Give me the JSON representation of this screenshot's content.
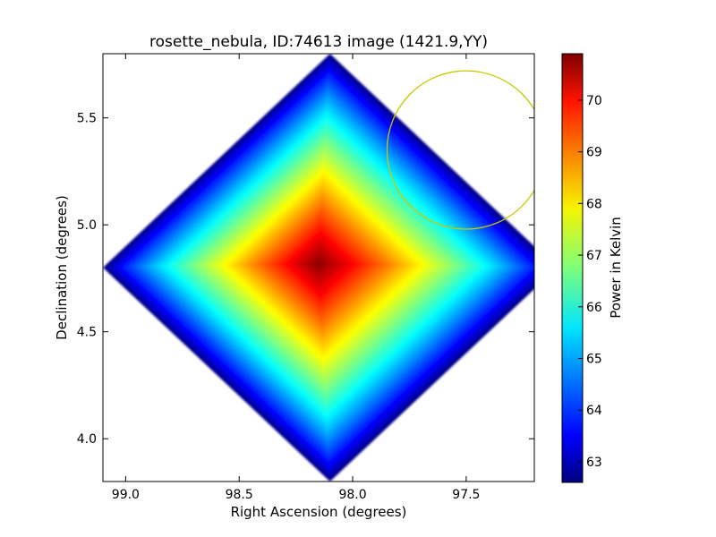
{
  "chart_data": {
    "type": "heatmap",
    "title": "rosette_nebula, ID:74613 image (1421.9,YY)",
    "xlabel": "Right Ascension (degrees)",
    "ylabel": "Declination (degrees)",
    "xlim": [
      99.1,
      97.2
    ],
    "ylim": [
      3.8,
      5.8
    ],
    "x_ticks": [
      99.0,
      98.5,
      98.0,
      97.5
    ],
    "x_tick_labels": [
      "99.0",
      "98.5",
      "98.0",
      "97.5"
    ],
    "y_ticks": [
      4.0,
      4.5,
      5.0,
      5.5
    ],
    "y_tick_labels": [
      "4.0",
      "4.5",
      "5.0",
      "5.5"
    ],
    "colormap": "jet",
    "colorbar": {
      "label": "Power in Kelvin",
      "range": [
        62.6,
        70.9
      ],
      "ticks": [
        63,
        64,
        65,
        66,
        67,
        68,
        69,
        70
      ],
      "tick_labels": [
        "63",
        "64",
        "65",
        "66",
        "67",
        "68",
        "69",
        "70"
      ]
    },
    "map": {
      "shape": "diamond",
      "center": [
        98.1,
        4.8
      ],
      "half_extent_ra": 1.0,
      "half_extent_dec": 1.0,
      "peak_value": 70.9,
      "peak_position": [
        98.15,
        4.82
      ],
      "edge_value": 62.7
    },
    "annotation": {
      "type": "circle",
      "center": [
        97.5,
        5.35
      ],
      "radius_deg": 0.37,
      "color": "#c8c800"
    }
  }
}
